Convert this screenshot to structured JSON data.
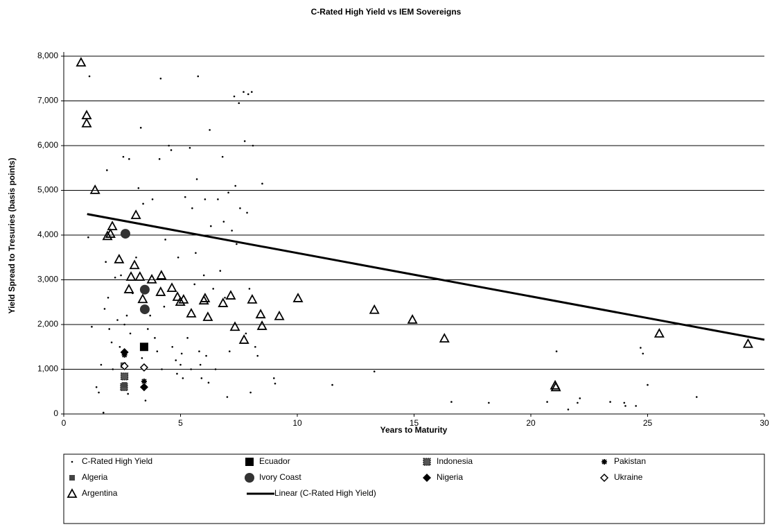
{
  "chart_data": {
    "type": "scatter",
    "title": "C-Rated High Yield vs IEM Sovereigns",
    "xlabel": "Years to Maturity",
    "ylabel": "Yield Spread to Tresuries (basis points)",
    "xlim": [
      0,
      30
    ],
    "ylim": [
      0,
      8000
    ],
    "xticks": [
      0,
      5,
      10,
      15,
      20,
      25,
      30
    ],
    "yticks": [
      0,
      {
        "value": 1000,
        "label": "1,000"
      },
      {
        "value": 2000,
        "label": "2,000"
      },
      {
        "value": 3000,
        "label": "3,000"
      },
      {
        "value": 4000,
        "label": "4,000"
      },
      {
        "value": 5000,
        "label": "5,000"
      },
      {
        "value": 6000,
        "label": "6,000"
      },
      {
        "value": 7000,
        "label": "7,000"
      },
      {
        "value": 8000,
        "label": "8,000"
      }
    ],
    "grid": true,
    "legend": "bottom",
    "series": [
      {
        "name": "C-Rated High Yield",
        "color": "#000000",
        "marker": "dot",
        "x": [
          1.1,
          1.05,
          1.2,
          1.4,
          1.5,
          1.6,
          1.7,
          1.75,
          1.8,
          1.85,
          1.9,
          1.95,
          2.05,
          2.1,
          2.2,
          2.3,
          2.4,
          2.45,
          2.55,
          2.6,
          2.7,
          2.75,
          2.8,
          2.85,
          2.95,
          3.1,
          3.2,
          3.3,
          3.35,
          3.4,
          3.5,
          3.6,
          3.7,
          3.8,
          3.9,
          4.0,
          4.1,
          4.15,
          4.2,
          4.3,
          4.35,
          4.5,
          4.6,
          4.65,
          4.8,
          4.85,
          4.9,
          5.0,
          5.05,
          5.1,
          5.2,
          5.3,
          5.4,
          5.45,
          5.5,
          5.6,
          5.65,
          5.7,
          5.75,
          5.8,
          5.85,
          5.9,
          6.0,
          6.05,
          6.1,
          6.2,
          6.25,
          6.3,
          6.4,
          6.5,
          6.6,
          6.7,
          6.8,
          6.85,
          6.9,
          7.0,
          7.05,
          7.1,
          7.2,
          7.3,
          7.35,
          7.4,
          7.5,
          7.55,
          7.7,
          7.75,
          7.8,
          7.85,
          7.9,
          7.95,
          8.0,
          8.05,
          8.1,
          8.2,
          8.3,
          8.5,
          9.0,
          9.05,
          11.5,
          13.3,
          16.6,
          18.2,
          20.7,
          21.1,
          21.6,
          22.0,
          22.1,
          23.4,
          24.0,
          24.05,
          24.5,
          24.7,
          24.8,
          25.0,
          27.1
        ],
        "values": [
          7550,
          3950,
          1950,
          600,
          480,
          1100,
          30,
          2350,
          3400,
          5450,
          2600,
          1900,
          1600,
          1000,
          3050,
          2100,
          1500,
          3100,
          5750,
          2000,
          2200,
          450,
          5700,
          1800,
          2700,
          3500,
          5050,
          6400,
          1250,
          4700,
          300,
          1900,
          2200,
          4800,
          1700,
          1400,
          5700,
          7500,
          1000,
          2400,
          3900,
          6000,
          5900,
          1500,
          1200,
          900,
          3500,
          1100,
          1350,
          800,
          4850,
          1700,
          5950,
          1000,
          4600,
          2900,
          3600,
          5250,
          7550,
          1400,
          1100,
          800,
          3100,
          4800,
          1300,
          700,
          6350,
          4200,
          2800,
          1000,
          4800,
          3200,
          5750,
          4300,
          2600,
          380,
          4950,
          1400,
          4100,
          7100,
          5100,
          3800,
          6950,
          4600,
          7200,
          6100,
          1800,
          4500,
          7150,
          2800,
          480,
          7200,
          6000,
          1500,
          1300,
          5150,
          800,
          680,
          650,
          950,
          270,
          250,
          270,
          1400,
          100,
          250,
          350,
          270,
          250,
          180,
          180,
          1480,
          1350,
          650,
          380
        ]
      },
      {
        "name": "Ecuador",
        "color": "#000000",
        "marker": "square",
        "x": [
          3.44
        ],
        "values": [
          1500
        ]
      },
      {
        "name": "Indonesia",
        "color": "#555555",
        "marker": "hatch-square",
        "x": [
          2.58,
          2.6
        ],
        "values": [
          600,
          840
        ]
      },
      {
        "name": "Pakistan",
        "color": "#000000",
        "marker": "star",
        "x": [
          2.6,
          3.44
        ],
        "values": [
          1320,
          730
        ]
      },
      {
        "name": "Algeria",
        "color": "#444444",
        "marker": "small-square",
        "x": [
          2.55,
          2.6
        ],
        "values": [
          1090,
          650
        ]
      },
      {
        "name": "Ivory Coast",
        "color": "#333333",
        "marker": "circle",
        "x": [
          2.64,
          3.47,
          3.47
        ],
        "values": [
          4030,
          2780,
          2340
        ]
      },
      {
        "name": "Nigeria",
        "color": "#000000",
        "marker": "diamond",
        "x": [
          2.6,
          3.44
        ],
        "values": [
          1380,
          600
        ]
      },
      {
        "name": "Ukraine",
        "color": "#000000",
        "marker": "open-diamond",
        "x": [
          2.6,
          3.44
        ],
        "values": [
          1070,
          1040
        ]
      },
      {
        "name": "Argentina",
        "color": "#000000",
        "marker": "triangle",
        "x": [
          0.74,
          0.98,
          0.98,
          1.34,
          2.08,
          1.87,
          2.0,
          3.09,
          2.37,
          3.03,
          2.88,
          3.26,
          2.79,
          3.77,
          3.38,
          4.18,
          4.15,
          4.63,
          4.87,
          4.99,
          5.13,
          5.46,
          6.05,
          6.0,
          6.17,
          6.82,
          7.15,
          7.33,
          7.72,
          8.07,
          8.43,
          8.49,
          9.23,
          10.03,
          13.3,
          14.93,
          16.3,
          21.04,
          21.07,
          25.5,
          29.3
        ],
        "values": [
          7860,
          6680,
          6500,
          5010,
          4200,
          3980,
          4030,
          4450,
          3460,
          3330,
          3070,
          3070,
          2790,
          3010,
          2570,
          3100,
          2730,
          2820,
          2620,
          2510,
          2560,
          2250,
          2590,
          2540,
          2170,
          2480,
          2650,
          1950,
          1660,
          2560,
          2230,
          1970,
          2190,
          2590,
          2330,
          2110,
          1690,
          640,
          600,
          1800,
          1570
        ]
      },
      {
        "name": "Linear (C-Rated High Yield)",
        "color": "#000000",
        "marker": "line",
        "x": [
          1,
          30
        ],
        "values": [
          4470,
          1660
        ]
      }
    ]
  }
}
